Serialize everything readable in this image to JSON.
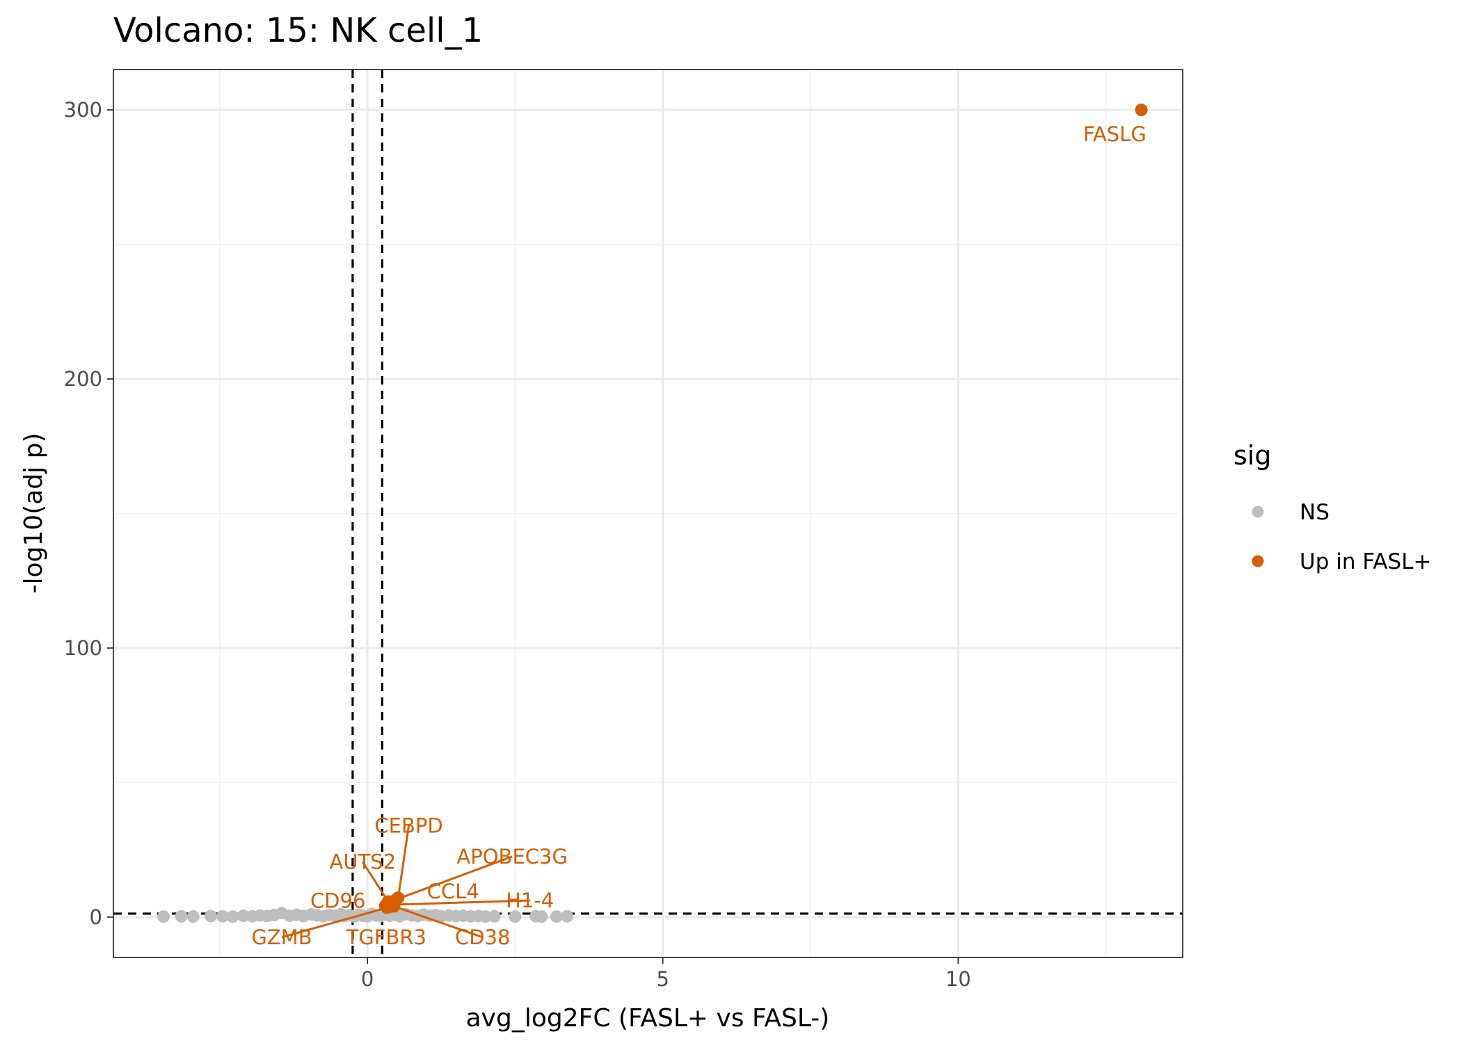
{
  "chart_data": {
    "type": "scatter",
    "title": "Volcano: 15: NK cell_1",
    "xlabel": "avg_log2FC (FASL+ vs FASL-)",
    "ylabel": "-log10(adj p)",
    "xlim": [
      -4.3,
      13.8
    ],
    "ylim": [
      -15,
      315
    ],
    "x_ticks": [
      0,
      5,
      10
    ],
    "y_ticks": [
      0,
      100,
      200,
      300
    ],
    "grid": true,
    "legend": {
      "title": "sig",
      "position": "right",
      "entries": [
        {
          "label": "NS",
          "color": "#bebebe"
        },
        {
          "label": "Up in FASL+",
          "color": "#d55e00"
        }
      ]
    },
    "thresholds": {
      "vertical": [
        -0.25,
        0.25
      ],
      "horizontal": 1.3
    },
    "series": [
      {
        "name": "NS",
        "color": "#bebebe",
        "points": [
          {
            "x": -3.45,
            "y": 0.2
          },
          {
            "x": -3.15,
            "y": 0.3
          },
          {
            "x": -2.95,
            "y": 0.2
          },
          {
            "x": -2.65,
            "y": 0.4
          },
          {
            "x": -2.45,
            "y": 0.3
          },
          {
            "x": -2.28,
            "y": 0.2
          },
          {
            "x": -2.1,
            "y": 0.5
          },
          {
            "x": -1.95,
            "y": 0.3
          },
          {
            "x": -1.82,
            "y": 0.6
          },
          {
            "x": -1.7,
            "y": 0.4
          },
          {
            "x": -1.58,
            "y": 0.8
          },
          {
            "x": -1.45,
            "y": 1.5
          },
          {
            "x": -1.32,
            "y": 0.5
          },
          {
            "x": -1.2,
            "y": 0.9
          },
          {
            "x": -1.08,
            "y": 0.4
          },
          {
            "x": -0.95,
            "y": 1.0
          },
          {
            "x": -0.85,
            "y": 0.6
          },
          {
            "x": -0.75,
            "y": 0.3
          },
          {
            "x": -0.65,
            "y": 0.8
          },
          {
            "x": -0.55,
            "y": 0.5
          },
          {
            "x": -0.45,
            "y": 1.1
          },
          {
            "x": -0.38,
            "y": 0.4
          },
          {
            "x": -0.3,
            "y": 0.7
          },
          {
            "x": -0.22,
            "y": 0.2
          },
          {
            "x": -0.15,
            "y": 0.9
          },
          {
            "x": -0.08,
            "y": 0.5
          },
          {
            "x": 0.0,
            "y": 0.3
          },
          {
            "x": 0.08,
            "y": 1.2
          },
          {
            "x": 0.15,
            "y": 0.6
          },
          {
            "x": 0.22,
            "y": 0.4
          },
          {
            "x": 0.3,
            "y": 1.0
          },
          {
            "x": 0.38,
            "y": 0.5
          },
          {
            "x": 0.46,
            "y": 0.8
          },
          {
            "x": 0.55,
            "y": 0.3
          },
          {
            "x": 0.65,
            "y": 1.1
          },
          {
            "x": 0.75,
            "y": 0.6
          },
          {
            "x": 0.85,
            "y": 0.4
          },
          {
            "x": 0.95,
            "y": 0.9
          },
          {
            "x": 1.05,
            "y": 0.5
          },
          {
            "x": 1.15,
            "y": 0.7
          },
          {
            "x": 1.25,
            "y": 0.3
          },
          {
            "x": 1.38,
            "y": 0.6
          },
          {
            "x": 1.5,
            "y": 0.4
          },
          {
            "x": 1.62,
            "y": 0.5
          },
          {
            "x": 1.75,
            "y": 0.3
          },
          {
            "x": 1.88,
            "y": 0.4
          },
          {
            "x": 2.0,
            "y": 0.2
          },
          {
            "x": 2.15,
            "y": 0.3
          },
          {
            "x": 2.5,
            "y": 0.2
          },
          {
            "x": 2.85,
            "y": 0.3
          },
          {
            "x": 2.95,
            "y": 0.2
          },
          {
            "x": 3.2,
            "y": 0.2
          },
          {
            "x": 3.38,
            "y": 0.3
          }
        ]
      },
      {
        "name": "Up in FASL+",
        "color": "#d55e00",
        "points": [
          {
            "x": 13.1,
            "y": 300,
            "label": "FASLG"
          },
          {
            "x": 0.52,
            "y": 7.2,
            "label": "CEBPD"
          },
          {
            "x": 0.48,
            "y": 6.5,
            "label": "APOBEC3G"
          },
          {
            "x": 0.35,
            "y": 5.8,
            "label": "AUTS2"
          },
          {
            "x": 0.42,
            "y": 5.0,
            "label": "CCL4"
          },
          {
            "x": 0.4,
            "y": 4.6,
            "label": "H1-4"
          },
          {
            "x": 0.3,
            "y": 4.2,
            "label": "CD96"
          },
          {
            "x": 0.45,
            "y": 4.0,
            "label": "CD38"
          },
          {
            "x": 0.38,
            "y": 3.8,
            "label": "TGFBR3"
          },
          {
            "x": 0.33,
            "y": 3.5,
            "label": "GZMB"
          }
        ]
      }
    ],
    "labels": [
      {
        "text": "FASLG",
        "x": 12.65,
        "y": 291,
        "point": [
          13.1,
          300
        ],
        "leader": false
      },
      {
        "text": "CEBPD",
        "x": 0.7,
        "y": 34,
        "point": [
          0.52,
          7.2
        ],
        "leader": true
      },
      {
        "text": "APOBEC3G",
        "x": 2.45,
        "y": 22.5,
        "point": [
          0.48,
          6.5
        ],
        "leader": true
      },
      {
        "text": "AUTS2",
        "x": -0.08,
        "y": 20.5,
        "point": [
          0.35,
          5.8
        ],
        "leader": true
      },
      {
        "text": "CCL4",
        "x": 1.45,
        "y": 9.5,
        "point": [
          0.42,
          5.0
        ],
        "leader": false
      },
      {
        "text": "H1-4",
        "x": 2.75,
        "y": 6.2,
        "point": [
          0.4,
          4.6
        ],
        "leader": true
      },
      {
        "text": "CD96",
        "x": -0.5,
        "y": 6.0,
        "point": [
          0.3,
          4.2
        ],
        "leader": false
      },
      {
        "text": "CD38",
        "x": 1.95,
        "y": -7.5,
        "point": [
          0.45,
          4.0
        ],
        "leader": true
      },
      {
        "text": "TGFBR3",
        "x": 0.32,
        "y": -7.5,
        "point": [
          0.38,
          3.8
        ],
        "leader": false
      },
      {
        "text": "GZMB",
        "x": -1.45,
        "y": -7.5,
        "point": [
          0.33,
          3.5
        ],
        "leader": true
      }
    ]
  }
}
